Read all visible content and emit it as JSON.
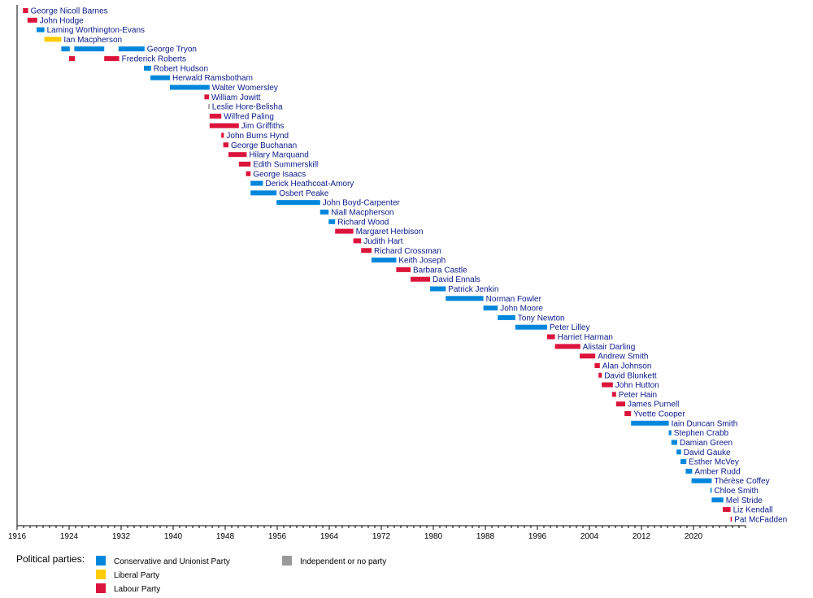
{
  "chart_data": {
    "type": "timeline",
    "parties": [
      {
        "key": "con",
        "name": "Conservative and Unionist Party",
        "color": "#0087DC"
      },
      {
        "key": "lib",
        "name": "Liberal Party",
        "color": "#FFCC00"
      },
      {
        "key": "lab",
        "name": "Labour Party",
        "color": "#DC143C"
      },
      {
        "key": "ind",
        "name": "Independent or no party",
        "color": "#999999"
      }
    ],
    "legend_title": "Political parties:",
    "x_ticks": [
      1916,
      1924,
      1932,
      1940,
      1948,
      1956,
      1964,
      1972,
      1980,
      1988,
      1996,
      2004,
      2012,
      2020
    ],
    "xlim": [
      1916,
      2028
    ],
    "ministers": [
      {
        "name": "George Nicoll Barnes",
        "terms": [
          {
            "start": 1916.9,
            "end": 1917.7,
            "party": "lab"
          }
        ]
      },
      {
        "name": "John Hodge",
        "terms": [
          {
            "start": 1917.6,
            "end": 1919.1,
            "party": "lab"
          }
        ]
      },
      {
        "name": "Laming Worthington-Evans",
        "terms": [
          {
            "start": 1919.0,
            "end": 1920.2,
            "party": "con"
          }
        ]
      },
      {
        "name": "Ian Macpherson",
        "terms": [
          {
            "start": 1920.2,
            "end": 1922.8,
            "party": "lib"
          }
        ]
      },
      {
        "name": "George Tryon",
        "terms": [
          {
            "start": 1922.8,
            "end": 1924.1,
            "party": "con"
          },
          {
            "start": 1924.8,
            "end": 1929.4,
            "party": "con"
          },
          {
            "start": 1931.6,
            "end": 1935.6,
            "party": "con"
          }
        ]
      },
      {
        "name": "Frederick Roberts",
        "terms": [
          {
            "start": 1924.0,
            "end": 1924.9,
            "party": "lab"
          },
          {
            "start": 1929.4,
            "end": 1931.7,
            "party": "lab"
          }
        ]
      },
      {
        "name": "Robert Hudson",
        "terms": [
          {
            "start": 1935.5,
            "end": 1936.6,
            "party": "con"
          }
        ]
      },
      {
        "name": "Herwald Ramsbotham",
        "terms": [
          {
            "start": 1936.5,
            "end": 1939.5,
            "party": "con"
          }
        ]
      },
      {
        "name": "Walter Womersley",
        "terms": [
          {
            "start": 1939.5,
            "end": 1945.6,
            "party": "con"
          }
        ]
      },
      {
        "name": "William Jowitt",
        "terms": [
          {
            "start": 1944.8,
            "end": 1945.5,
            "party": "lab"
          }
        ]
      },
      {
        "name": "Leslie Hore-Belisha",
        "terms": [
          {
            "start": 1945.4,
            "end": 1945.6,
            "party": "ind"
          }
        ]
      },
      {
        "name": "Wilfred Paling",
        "terms": [
          {
            "start": 1945.6,
            "end": 1947.4,
            "party": "lab"
          }
        ]
      },
      {
        "name": "Jim Griffiths",
        "terms": [
          {
            "start": 1945.6,
            "end": 1950.1,
            "party": "lab"
          }
        ]
      },
      {
        "name": "John Burns Hynd",
        "terms": [
          {
            "start": 1947.4,
            "end": 1947.8,
            "party": "lab"
          }
        ]
      },
      {
        "name": "George Buchanan",
        "terms": [
          {
            "start": 1947.7,
            "end": 1948.5,
            "party": "lab"
          }
        ]
      },
      {
        "name": "Hilary Marquand",
        "terms": [
          {
            "start": 1948.5,
            "end": 1951.3,
            "party": "lab"
          }
        ]
      },
      {
        "name": "Edith Summerskill",
        "terms": [
          {
            "start": 1950.1,
            "end": 1951.9,
            "party": "lab"
          }
        ]
      },
      {
        "name": "George Isaacs",
        "terms": [
          {
            "start": 1951.2,
            "end": 1951.9,
            "party": "lab"
          }
        ]
      },
      {
        "name": "Derick Heathcoat-Amory",
        "terms": [
          {
            "start": 1951.9,
            "end": 1953.8,
            "party": "con"
          }
        ]
      },
      {
        "name": "Osbert Peake",
        "terms": [
          {
            "start": 1951.9,
            "end": 1955.9,
            "party": "con"
          }
        ]
      },
      {
        "name": "John Boyd-Carpenter",
        "terms": [
          {
            "start": 1955.9,
            "end": 1962.6,
            "party": "con"
          }
        ]
      },
      {
        "name": "Niall Macpherson",
        "terms": [
          {
            "start": 1962.6,
            "end": 1963.9,
            "party": "con"
          }
        ]
      },
      {
        "name": "Richard Wood",
        "terms": [
          {
            "start": 1963.9,
            "end": 1964.9,
            "party": "con"
          }
        ]
      },
      {
        "name": "Margaret Herbison",
        "terms": [
          {
            "start": 1964.9,
            "end": 1967.7,
            "party": "lab"
          }
        ]
      },
      {
        "name": "Judith Hart",
        "terms": [
          {
            "start": 1967.7,
            "end": 1968.9,
            "party": "lab"
          }
        ]
      },
      {
        "name": "Richard Crossman",
        "terms": [
          {
            "start": 1968.9,
            "end": 1970.5,
            "party": "lab"
          }
        ]
      },
      {
        "name": "Keith Joseph",
        "terms": [
          {
            "start": 1970.5,
            "end": 1974.3,
            "party": "con"
          }
        ]
      },
      {
        "name": "Barbara Castle",
        "terms": [
          {
            "start": 1974.3,
            "end": 1976.5,
            "party": "lab"
          }
        ]
      },
      {
        "name": "David Ennals",
        "terms": [
          {
            "start": 1976.5,
            "end": 1979.5,
            "party": "lab"
          }
        ]
      },
      {
        "name": "Patrick Jenkin",
        "terms": [
          {
            "start": 1979.5,
            "end": 1981.9,
            "party": "con"
          }
        ]
      },
      {
        "name": "Norman Fowler",
        "terms": [
          {
            "start": 1981.9,
            "end": 1987.7,
            "party": "con"
          }
        ]
      },
      {
        "name": "John Moore",
        "terms": [
          {
            "start": 1987.7,
            "end": 1989.9,
            "party": "con"
          }
        ]
      },
      {
        "name": "Tony Newton",
        "terms": [
          {
            "start": 1989.9,
            "end": 1992.6,
            "party": "con"
          }
        ]
      },
      {
        "name": "Peter Lilley",
        "terms": [
          {
            "start": 1992.6,
            "end": 1997.5,
            "party": "con"
          }
        ]
      },
      {
        "name": "Harriet Harman",
        "terms": [
          {
            "start": 1997.5,
            "end": 1998.7,
            "party": "lab"
          }
        ]
      },
      {
        "name": "Alistair Darling",
        "terms": [
          {
            "start": 1998.7,
            "end": 2002.6,
            "party": "lab"
          }
        ]
      },
      {
        "name": "Andrew Smith",
        "terms": [
          {
            "start": 2002.5,
            "end": 2004.9,
            "party": "lab"
          }
        ]
      },
      {
        "name": "Alan Johnson",
        "terms": [
          {
            "start": 2004.8,
            "end": 2005.6,
            "party": "lab"
          }
        ]
      },
      {
        "name": "David Blunkett",
        "terms": [
          {
            "start": 2005.4,
            "end": 2005.9,
            "party": "lab"
          }
        ]
      },
      {
        "name": "John Hutton",
        "terms": [
          {
            "start": 2005.9,
            "end": 2007.6,
            "party": "lab"
          }
        ]
      },
      {
        "name": "Peter Hain",
        "terms": [
          {
            "start": 2007.5,
            "end": 2008.1,
            "party": "lab"
          }
        ]
      },
      {
        "name": "James Purnell",
        "terms": [
          {
            "start": 2008.1,
            "end": 2009.5,
            "party": "lab"
          }
        ]
      },
      {
        "name": "Yvette Cooper",
        "terms": [
          {
            "start": 2009.4,
            "end": 2010.4,
            "party": "lab"
          }
        ]
      },
      {
        "name": "Iain Duncan Smith",
        "terms": [
          {
            "start": 2010.4,
            "end": 2016.2,
            "party": "con"
          }
        ]
      },
      {
        "name": "Stephen Crabb",
        "terms": [
          {
            "start": 2016.2,
            "end": 2016.6,
            "party": "con"
          }
        ]
      },
      {
        "name": "Damian Green",
        "terms": [
          {
            "start": 2016.6,
            "end": 2017.5,
            "party": "con"
          }
        ]
      },
      {
        "name": "David Gauke",
        "terms": [
          {
            "start": 2017.4,
            "end": 2018.1,
            "party": "con"
          }
        ]
      },
      {
        "name": "Esther McVey",
        "terms": [
          {
            "start": 2018.0,
            "end": 2018.9,
            "party": "con"
          }
        ]
      },
      {
        "name": "Amber Rudd",
        "terms": [
          {
            "start": 2018.8,
            "end": 2019.8,
            "party": "con"
          }
        ]
      },
      {
        "name": "Thérèse Coffey",
        "terms": [
          {
            "start": 2019.7,
            "end": 2022.8,
            "party": "con"
          }
        ]
      },
      {
        "name": "Chloe Smith",
        "terms": [
          {
            "start": 2022.6,
            "end": 2022.8,
            "party": "con"
          }
        ]
      },
      {
        "name": "Mel Stride",
        "terms": [
          {
            "start": 2022.8,
            "end": 2024.6,
            "party": "con"
          }
        ]
      },
      {
        "name": "Liz Kendall",
        "terms": [
          {
            "start": 2024.5,
            "end": 2025.7,
            "party": "lab"
          }
        ]
      },
      {
        "name": "Pat McFadden",
        "terms": [
          {
            "start": 2025.7,
            "end": 2025.9,
            "party": "lab"
          }
        ]
      }
    ]
  }
}
